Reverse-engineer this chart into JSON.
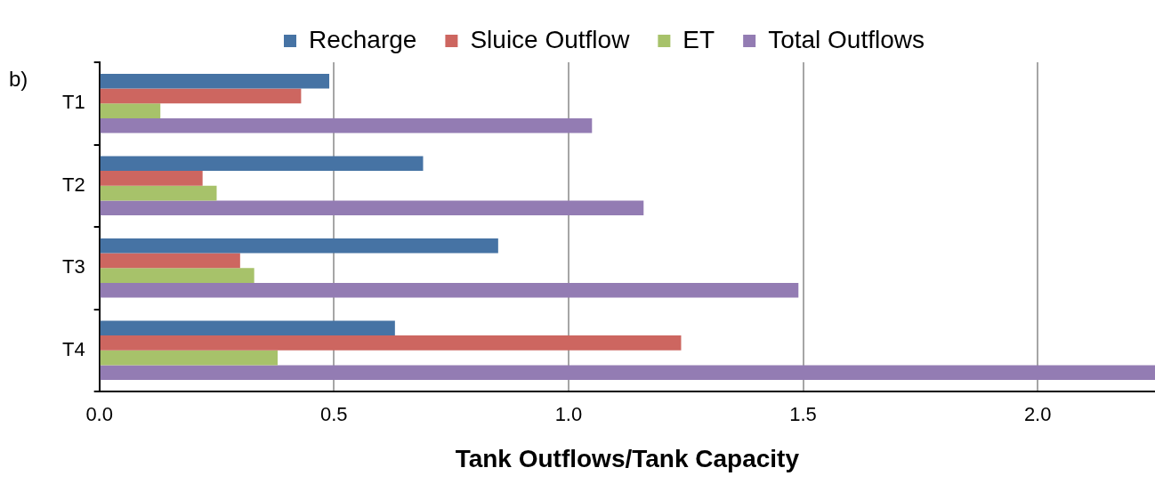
{
  "chart_data": {
    "type": "bar",
    "orientation": "horizontal",
    "xlabel": "Tank Outflows/Tank Capacity",
    "annotations": [
      "b)"
    ],
    "categories": [
      "T1",
      "T2",
      "T3",
      "T4"
    ],
    "series": [
      {
        "name": "Recharge",
        "color": "#4673a4",
        "values": [
          0.49,
          0.69,
          0.85,
          0.63
        ]
      },
      {
        "name": "Sluice Outflow",
        "color": "#cd6660",
        "values": [
          0.43,
          0.22,
          0.3,
          1.24
        ]
      },
      {
        "name": "ET",
        "color": "#a7c26a",
        "values": [
          0.13,
          0.25,
          0.33,
          0.38
        ]
      },
      {
        "name": "Total Outflows",
        "color": "#937cb3",
        "values": [
          1.05,
          1.16,
          1.49,
          2.25
        ]
      }
    ],
    "xlim": [
      0,
      2.25
    ],
    "xticks": [
      {
        "value": 0,
        "label": "0.0"
      },
      {
        "value": 0.5,
        "label": "0.5"
      },
      {
        "value": 1,
        "label": "1.0"
      },
      {
        "value": 1.5,
        "label": "1.5"
      },
      {
        "value": 2,
        "label": "2.0"
      }
    ],
    "grid": "x",
    "legend": "top"
  }
}
